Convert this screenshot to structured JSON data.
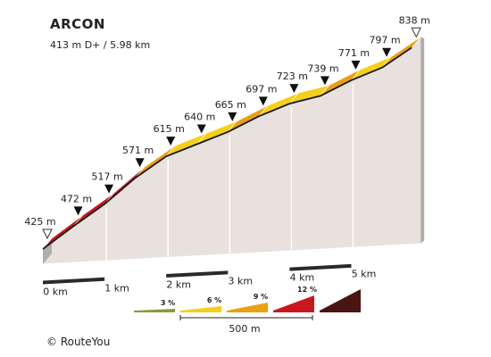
{
  "header": {
    "title": "ARCON",
    "subtitle": "413 m D+ / 5.98 km"
  },
  "credit": "© RouteYou",
  "chart_data": {
    "type": "area",
    "x_unit": "km",
    "x_tick_labels": [
      "0 km",
      "1 km",
      "2 km",
      "3 km",
      "4 km",
      "5 km"
    ],
    "points": [
      {
        "km": 0.0,
        "elevation": 425,
        "label": "425 m",
        "grade_class": 4
      },
      {
        "km": 0.5,
        "elevation": 472,
        "label": "472 m",
        "grade_class": 4
      },
      {
        "km": 1.0,
        "elevation": 517,
        "label": "517 m",
        "grade_class": 4
      },
      {
        "km": 1.5,
        "elevation": 571,
        "label": "571 m",
        "grade_class": 3
      },
      {
        "km": 2.0,
        "elevation": 615,
        "label": "615 m",
        "grade_class": 2
      },
      {
        "km": 2.5,
        "elevation": 640,
        "label": "640 m",
        "grade_class": 2
      },
      {
        "km": 3.0,
        "elevation": 665,
        "label": "665 m",
        "grade_class": 3
      },
      {
        "km": 3.5,
        "elevation": 697,
        "label": "697 m",
        "grade_class": 2
      },
      {
        "km": 4.0,
        "elevation": 723,
        "label": "723 m",
        "grade_class": 2
      },
      {
        "km": 4.5,
        "elevation": 739,
        "label": "739 m",
        "grade_class": 3
      },
      {
        "km": 5.0,
        "elevation": 771,
        "label": "771 m",
        "grade_class": 2
      },
      {
        "km": 5.5,
        "elevation": 797,
        "label": "797 m",
        "grade_class": 3
      },
      {
        "km": 5.98,
        "elevation": 838,
        "label": "838 m",
        "grade_class": null
      }
    ],
    "grade_legend": [
      {
        "label": "3 %",
        "color": "#8c9b3a"
      },
      {
        "label": "6 %",
        "color": "#f5cf18"
      },
      {
        "label": "9 %",
        "color": "#eaa012"
      },
      {
        "label": "12 %",
        "color": "#c8171e"
      },
      {
        "label": "",
        "color": "#4a1412"
      }
    ],
    "scale_label": "500 m",
    "colors": {
      "face": "#e8e1dd",
      "side": "#b0aeab",
      "base": "#2a2a2a",
      "gap": "#ffffff"
    }
  }
}
